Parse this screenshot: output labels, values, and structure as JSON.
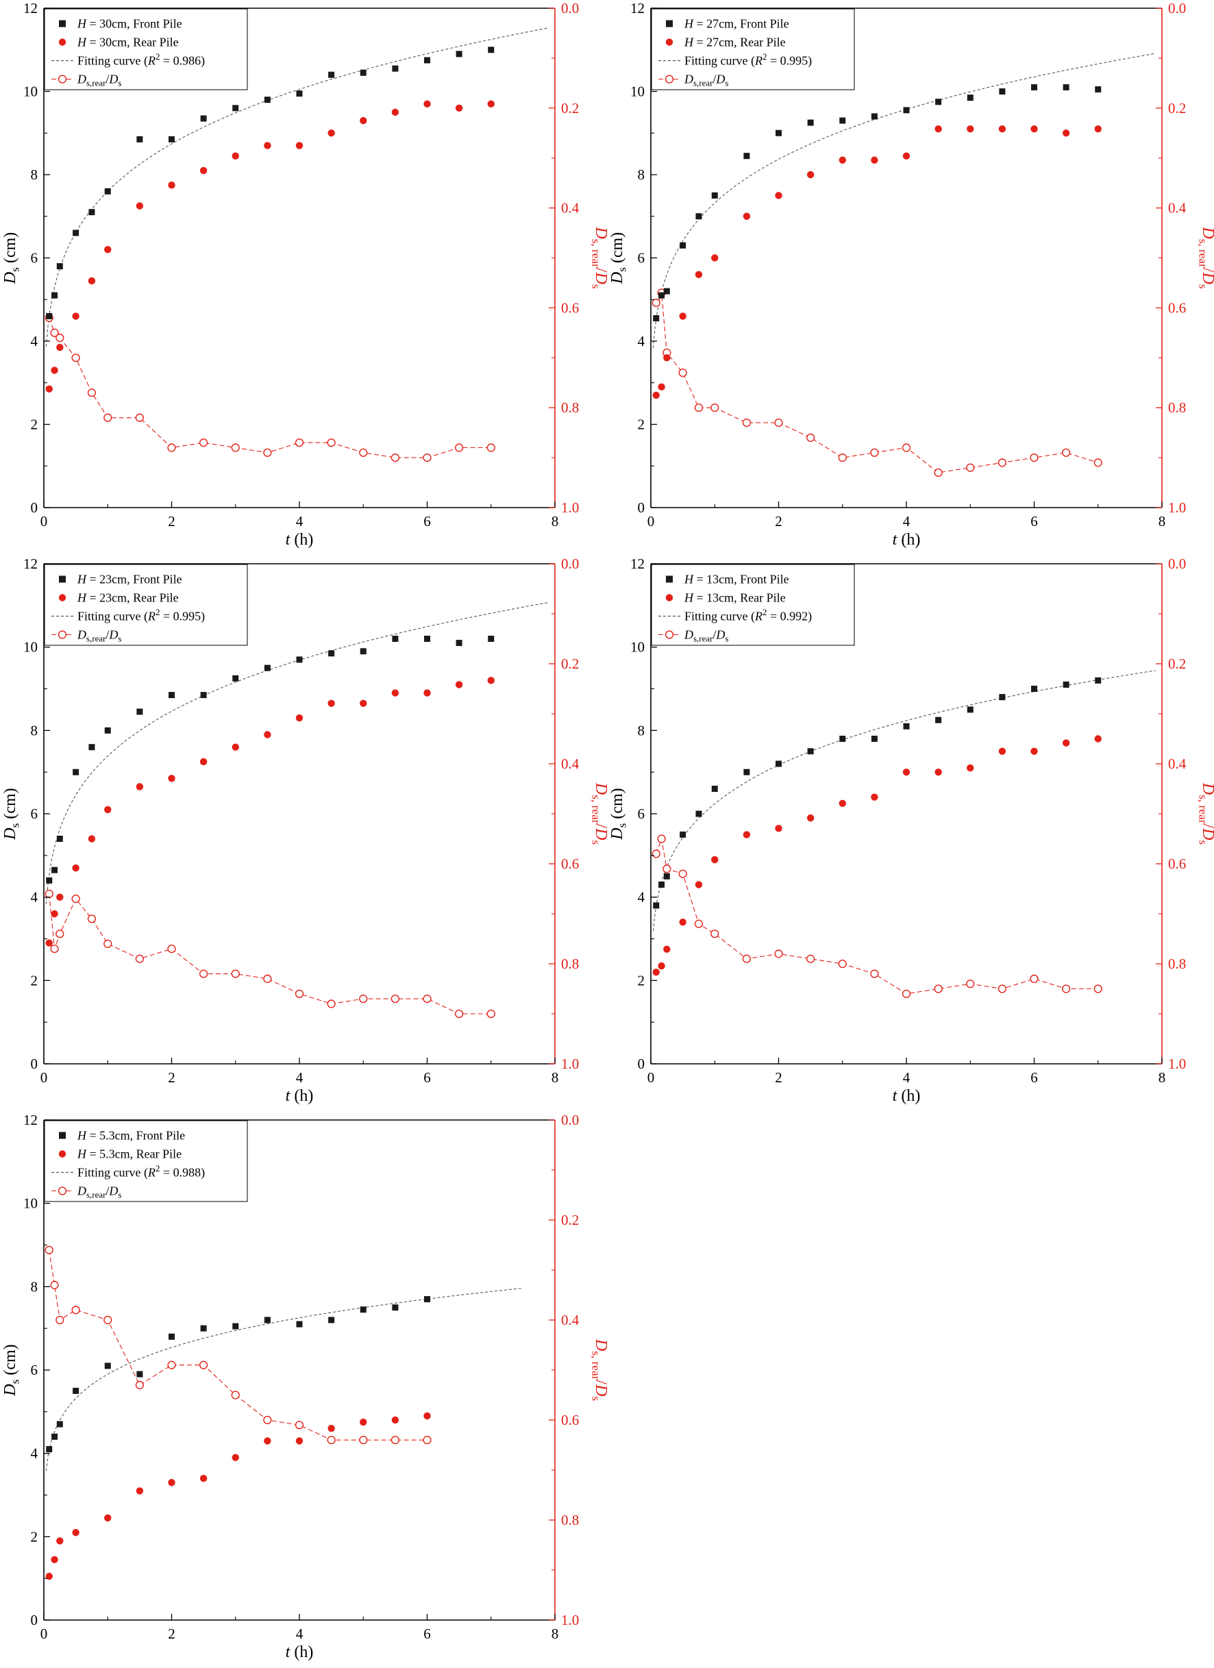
{
  "page": {
    "description": "Five scour-depth development charts, Ds vs t, front and rear pile with fitting curve and depth ratio"
  },
  "colors": {
    "black": "#1a1a1a",
    "axis_black": "#000000",
    "red": "#e32017",
    "fit_gray": "#555555",
    "white": "#ffffff"
  },
  "icons": {
    "front_pile_marker": "filled-square-icon",
    "rear_pile_marker": "filled-circle-icon",
    "ratio_marker": "open-circle-icon",
    "fit_line": "dashed-line-icon"
  },
  "chart_data": [
    {
      "type": "scatter",
      "position": "top-left",
      "title": "",
      "xlabel": "*t* (h)",
      "ylabel_left": "*D*_{s} (cm)",
      "ylabel_right": "*D*_{s, rear}/*D*_{s}",
      "xlim": [
        0,
        8
      ],
      "ylim_left": [
        0,
        12
      ],
      "ylim_right": [
        0.0,
        1.0
      ],
      "right_axis_inverted": true,
      "x_ticks": [
        0,
        2,
        4,
        6,
        8
      ],
      "y_ticks_left": [
        0,
        2,
        4,
        6,
        8,
        10,
        12
      ],
      "y_ticks_right": [
        0.0,
        0.2,
        0.4,
        0.6,
        0.8,
        1.0
      ],
      "legend": [
        "*H* = 30cm, Front Pile",
        "*H* = 30cm, Rear Pile",
        "Fitting curve (*R*^{2} = 0.986)",
        "*D*_{s,rear}/*D*_{s}"
      ],
      "r_squared": 0.986,
      "fit_end": 7.9,
      "x": [
        0.083,
        0.167,
        0.25,
        0.5,
        0.75,
        1,
        1.5,
        2,
        2.5,
        3,
        3.5,
        4,
        4.5,
        5,
        5.5,
        6,
        6.5,
        7
      ],
      "front_pile": [
        4.6,
        5.1,
        5.8,
        6.6,
        7.1,
        7.6,
        8.85,
        8.85,
        9.35,
        9.6,
        9.8,
        9.95,
        10.4,
        10.45,
        10.55,
        10.75,
        10.9,
        11.0
      ],
      "rear_pile": [
        2.85,
        3.3,
        3.85,
        4.6,
        5.45,
        6.2,
        7.25,
        7.75,
        8.1,
        8.45,
        8.7,
        8.7,
        9.0,
        9.3,
        9.5,
        9.7,
        9.6,
        9.7
      ],
      "ratio": [
        0.62,
        0.65,
        0.66,
        0.7,
        0.77,
        0.82,
        0.82,
        0.88,
        0.87,
        0.88,
        0.89,
        0.87,
        0.87,
        0.89,
        0.9,
        0.9,
        0.88,
        0.88
      ]
    },
    {
      "type": "scatter",
      "position": "top-right",
      "title": "",
      "xlabel": "*t* (h)",
      "ylabel_left": "*D*_{s} (cm)",
      "ylabel_right": "*D*_{s, rear}/*D*_{s}",
      "xlim": [
        0,
        8
      ],
      "ylim_left": [
        0,
        12
      ],
      "ylim_right": [
        0.0,
        1.0
      ],
      "right_axis_inverted": true,
      "x_ticks": [
        0,
        2,
        4,
        6,
        8
      ],
      "y_ticks_left": [
        0,
        2,
        4,
        6,
        8,
        10,
        12
      ],
      "y_ticks_right": [
        0.0,
        0.2,
        0.4,
        0.6,
        0.8,
        1.0
      ],
      "legend": [
        "*H* = 27cm, Front Pile",
        "*H* = 27cm, Rear Pile",
        "Fitting curve (*R*^{2} = 0.995)",
        "*D*_{s,rear}/*D*_{s}"
      ],
      "r_squared": 0.995,
      "fit_end": 7.9,
      "x": [
        0.083,
        0.167,
        0.25,
        0.5,
        0.75,
        1,
        1.5,
        2,
        2.5,
        3,
        3.5,
        4,
        4.5,
        5,
        5.5,
        6,
        6.5,
        7
      ],
      "front_pile": [
        4.55,
        5.1,
        5.2,
        6.3,
        7.0,
        7.5,
        8.45,
        9.0,
        9.25,
        9.3,
        9.4,
        9.55,
        9.75,
        9.85,
        10.0,
        10.1,
        10.1,
        10.05
      ],
      "rear_pile": [
        2.7,
        2.9,
        3.6,
        4.6,
        5.6,
        6.0,
        7.0,
        7.5,
        8.0,
        8.35,
        8.35,
        8.45,
        9.1,
        9.1,
        9.1,
        9.1,
        9.0,
        9.1
      ],
      "ratio": [
        0.59,
        0.57,
        0.69,
        0.73,
        0.8,
        0.8,
        0.83,
        0.83,
        0.86,
        0.9,
        0.89,
        0.88,
        0.93,
        0.92,
        0.91,
        0.9,
        0.89,
        0.91
      ]
    },
    {
      "type": "scatter",
      "position": "middle-left",
      "title": "",
      "xlabel": "*t* (h)",
      "ylabel_left": "*D*_{s} (cm)",
      "ylabel_right": "*D*_{s, rear}/*D*_{s}",
      "xlim": [
        0,
        8
      ],
      "ylim_left": [
        0,
        12
      ],
      "ylim_right": [
        0.0,
        1.0
      ],
      "right_axis_inverted": true,
      "x_ticks": [
        0,
        2,
        4,
        6,
        8
      ],
      "y_ticks_left": [
        0,
        2,
        4,
        6,
        8,
        10,
        12
      ],
      "y_ticks_right": [
        0.0,
        0.2,
        0.4,
        0.6,
        0.8,
        1.0
      ],
      "legend": [
        "*H* = 23cm, Front Pile",
        "*H* = 23cm, Rear Pile",
        "Fitting curve (*R*^{2} = 0.995)",
        "*D*_{s,rear}/*D*_{s}"
      ],
      "r_squared": 0.995,
      "fit_end": 7.9,
      "x": [
        0.083,
        0.167,
        0.25,
        0.5,
        0.75,
        1,
        1.5,
        2,
        2.5,
        3,
        3.5,
        4,
        4.5,
        5,
        5.5,
        6,
        6.5,
        7
      ],
      "front_pile": [
        4.4,
        4.65,
        5.4,
        7.0,
        7.6,
        8.0,
        8.45,
        8.85,
        8.85,
        9.25,
        9.5,
        9.7,
        9.85,
        9.9,
        10.2,
        10.2,
        10.1,
        10.2
      ],
      "rear_pile": [
        2.9,
        3.6,
        4.0,
        4.7,
        5.4,
        6.1,
        6.65,
        6.85,
        7.25,
        7.6,
        7.9,
        8.3,
        8.65,
        8.65,
        8.9,
        8.9,
        9.1,
        9.2
      ],
      "ratio": [
        0.66,
        0.77,
        0.74,
        0.67,
        0.71,
        0.76,
        0.79,
        0.77,
        0.82,
        0.82,
        0.83,
        0.86,
        0.88,
        0.87,
        0.87,
        0.87,
        0.9,
        0.9
      ]
    },
    {
      "type": "scatter",
      "position": "middle-right",
      "title": "",
      "xlabel": "*t* (h)",
      "ylabel_left": "*D*_{s} (cm)",
      "ylabel_right": "*D*_{s, rear}/*D*_{s}",
      "xlim": [
        0,
        8
      ],
      "ylim_left": [
        0,
        12
      ],
      "ylim_right": [
        0.0,
        1.0
      ],
      "right_axis_inverted": true,
      "x_ticks": [
        0,
        2,
        4,
        6,
        8
      ],
      "y_ticks_left": [
        0,
        2,
        4,
        6,
        8,
        10,
        12
      ],
      "y_ticks_right": [
        0.0,
        0.2,
        0.4,
        0.6,
        0.8,
        1.0
      ],
      "legend": [
        "*H* = 13cm, Front Pile",
        "*H* = 13cm, Rear Pile",
        "Fitting curve (*R*^{2} = 0.992)",
        "*D*_{s,rear}/*D*_{s}"
      ],
      "r_squared": 0.992,
      "fit_end": 7.9,
      "x": [
        0.083,
        0.167,
        0.25,
        0.5,
        0.75,
        1,
        1.5,
        2,
        2.5,
        3,
        3.5,
        4,
        4.5,
        5,
        5.5,
        6,
        6.5,
        7
      ],
      "front_pile": [
        3.8,
        4.3,
        4.5,
        5.5,
        6.0,
        6.6,
        7.0,
        7.2,
        7.5,
        7.8,
        7.8,
        8.1,
        8.25,
        8.5,
        8.8,
        9.0,
        9.1,
        9.2
      ],
      "rear_pile": [
        2.2,
        2.35,
        2.75,
        3.4,
        4.3,
        4.9,
        5.5,
        5.65,
        5.9,
        6.25,
        6.4,
        7.0,
        7.0,
        7.1,
        7.5,
        7.5,
        7.7,
        7.8
      ],
      "ratio": [
        0.58,
        0.55,
        0.61,
        0.62,
        0.72,
        0.74,
        0.79,
        0.78,
        0.79,
        0.8,
        0.82,
        0.86,
        0.85,
        0.84,
        0.85,
        0.83,
        0.85,
        0.85
      ]
    },
    {
      "type": "scatter",
      "position": "bottom-left",
      "title": "",
      "xlabel": "*t* (h)",
      "ylabel_left": "*D*_{s} (cm)",
      "ylabel_right": "*D*_{s, rear}/*D*_{s}",
      "xlim": [
        0,
        8
      ],
      "ylim_left": [
        0,
        12
      ],
      "ylim_right": [
        0.0,
        1.0
      ],
      "right_axis_inverted": true,
      "x_ticks": [
        0,
        2,
        4,
        6,
        8
      ],
      "y_ticks_left": [
        0,
        2,
        4,
        6,
        8,
        10,
        12
      ],
      "y_ticks_right": [
        0.0,
        0.2,
        0.4,
        0.6,
        0.8,
        1.0
      ],
      "legend": [
        "*H* = 5.3cm, Front Pile",
        "*H* = 5.3cm, Rear Pile",
        "Fitting curve (*R*^{2} = 0.988)",
        "*D*_{s,rear}/*D*_{s}"
      ],
      "r_squared": 0.988,
      "fit_end": 7.5,
      "x": [
        0.083,
        0.167,
        0.25,
        0.5,
        1,
        1.5,
        2,
        2.5,
        3,
        3.5,
        4,
        4.5,
        5,
        5.5,
        6
      ],
      "front_pile": [
        4.1,
        4.4,
        4.7,
        5.5,
        6.1,
        5.9,
        6.8,
        7.0,
        7.05,
        7.2,
        7.1,
        7.2,
        7.45,
        7.5,
        7.7
      ],
      "rear_pile": [
        1.05,
        1.45,
        1.9,
        2.1,
        2.45,
        3.1,
        3.3,
        3.4,
        3.9,
        4.3,
        4.3,
        4.6,
        4.75,
        4.8,
        4.9
      ],
      "ratio": [
        0.26,
        0.33,
        0.4,
        0.38,
        0.4,
        0.53,
        0.49,
        0.49,
        0.55,
        0.6,
        0.61,
        0.64,
        0.64,
        0.64,
        0.64
      ]
    }
  ]
}
